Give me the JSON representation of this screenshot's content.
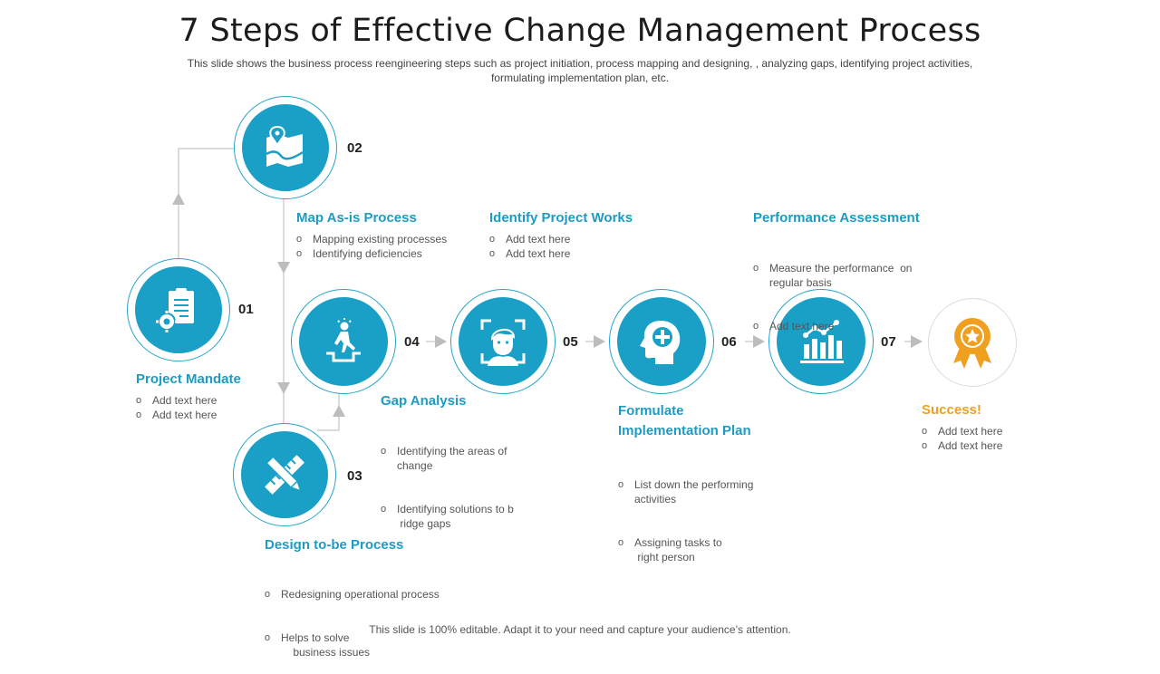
{
  "title": "7 Steps of Effective Change Management Process",
  "subtitle": "This slide shows the business process reengineering  steps such as project initiation, process mapping and designing, , analyzing gaps, identifying project activities, formulating  implementation plan, etc.",
  "footer": "This slide is 100% editable. Adapt it to your need and capture your audience’s attention.",
  "colors": {
    "accent": "#1aa0c6",
    "heading": "#1d9bc3",
    "success": "#f0a020",
    "connector": "#bdbdbd"
  },
  "steps": [
    {
      "number": "01",
      "icon": "clipboard-gear-icon",
      "heading": "Project Mandate",
      "bullets": [
        "Add text here",
        "Add text here"
      ]
    },
    {
      "number": "02",
      "icon": "map-pin-icon",
      "heading": "Map As-is Process",
      "bullets": [
        "Mapping existing processes",
        "Identifying deficiencies"
      ]
    },
    {
      "number": "03",
      "icon": "pencil-ruler-icon",
      "heading": "Design to-be Process",
      "bullets": [
        "Redesigning operational process",
        "Helps to solve\n    business issues"
      ]
    },
    {
      "number": "04",
      "icon": "person-climbing-icon",
      "heading": "Gap Analysis",
      "bullets": [
        "Identifying the areas of\nchange",
        "Identifying solutions to b\n ridge gaps"
      ]
    },
    {
      "number": "05",
      "icon": "face-scan-icon",
      "heading": "Identify Project Works",
      "bullets": [
        "Add text here",
        "Add text here"
      ]
    },
    {
      "number": "06",
      "icon": "head-plus-icon",
      "heading": "Formulate\nImplementation Plan",
      "bullets": [
        "List down the performing\nactivities",
        "Assigning tasks to\n right person"
      ]
    },
    {
      "number": "07",
      "icon": "bar-chart-icon",
      "heading": "Performance Assessment",
      "bullets": [
        "Measure the performance  on\nregular basis",
        "Add text here"
      ]
    }
  ],
  "success": {
    "icon": "award-ribbon-icon",
    "heading": "Success!",
    "bullets": [
      "Add text here",
      "Add text here"
    ]
  }
}
